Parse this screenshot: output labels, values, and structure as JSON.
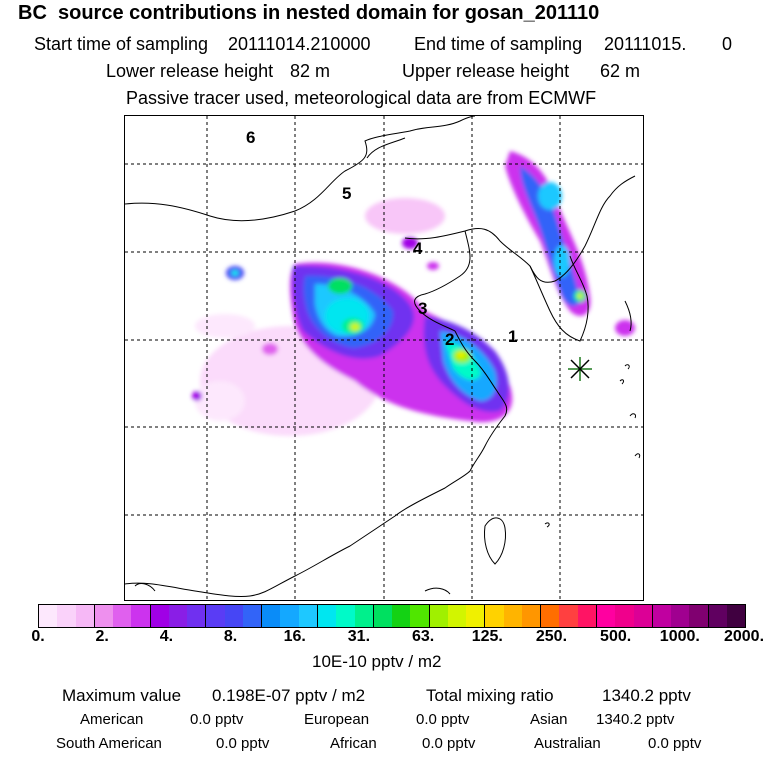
{
  "title": "BC  source contributions in nested domain for gosan_201110",
  "sampling": {
    "start_label": "Start time of sampling",
    "start_value": "20111014.210000",
    "end_label": "End time of sampling",
    "end_value": "20111015.",
    "end_suffix": "0"
  },
  "release": {
    "lower_label": "Lower release height",
    "lower_value": "82 m",
    "upper_label": "Upper release height",
    "upper_value": "62 m"
  },
  "tracer_note": "Passive tracer used, meteorological data are from ECMWF",
  "map": {
    "region_labels": [
      "6",
      "5",
      "4",
      "3",
      "2",
      "1"
    ],
    "receptor_site": "gosan"
  },
  "colorbar": {
    "colors": [
      "#fde8fd",
      "#fad2fa",
      "#f6b8f6",
      "#ee90ee",
      "#e060ee",
      "#cc33ee",
      "#a000e6",
      "#8a1ee6",
      "#7030f0",
      "#5a3cf5",
      "#4646f5",
      "#3264f8",
      "#0a8cf8",
      "#14a8ff",
      "#1ec8ff",
      "#00e6f0",
      "#00fac8",
      "#00f08c",
      "#00e060",
      "#14d214",
      "#50e600",
      "#a0f000",
      "#d2f500",
      "#f0f000",
      "#ffd200",
      "#ffb400",
      "#ff9600",
      "#ff6e00",
      "#ff4040",
      "#ff1464",
      "#ff00a0",
      "#f0008c",
      "#dc0096",
      "#c000a0",
      "#a00090",
      "#800070",
      "#600060",
      "#400040"
    ],
    "tick_labels": [
      "0.",
      "2.",
      "4.",
      "8.",
      "16.",
      "31.",
      "63.",
      "125.",
      "250.",
      "500.",
      "1000.",
      "2000."
    ],
    "unit": "10E-10 pptv / m2"
  },
  "stats": {
    "max_label": "Maximum value",
    "max_value": "0.198E-07 pptv / m2",
    "total_label": "Total mixing ratio",
    "total_value": "1340.2 pptv",
    "regions": [
      {
        "name": "American",
        "value": "0.0 pptv"
      },
      {
        "name": "European",
        "value": "0.0 pptv"
      },
      {
        "name": "Asian",
        "value": "1340.2 pptv"
      },
      {
        "name": "South American",
        "value": "0.0 pptv"
      },
      {
        "name": "African",
        "value": "0.0 pptv"
      },
      {
        "name": "Australian",
        "value": "0.0 pptv"
      }
    ]
  }
}
